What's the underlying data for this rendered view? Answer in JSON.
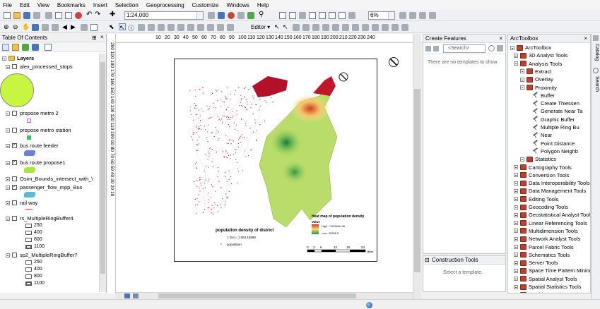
{
  "menu": [
    "File",
    "Edit",
    "View",
    "Bookmarks",
    "Insert",
    "Selection",
    "Geoprocessing",
    "Customize",
    "Windows",
    "Help"
  ],
  "toolbar": {
    "scale": "1:24,000",
    "zoom_percent": "6%",
    "editor_label": "Editor ▾"
  },
  "toc": {
    "title": "Table Of Contents",
    "root": "Layers",
    "layers": [
      {
        "name": "alex_processed_stops",
        "checked": false
      },
      {
        "name": "propose metro 2",
        "checked": false
      },
      {
        "name": "propose metro station",
        "checked": false
      },
      {
        "name": "bus route feeder",
        "checked": true
      },
      {
        "name": "bus route propose1",
        "checked": true
      },
      {
        "name": "Osim_Bounds_intersect_with_\\",
        "checked": false
      },
      {
        "name": "passenger_flow_mpp_Bus",
        "checked": true
      },
      {
        "name": "rail way",
        "checked": false
      },
      {
        "name": "rs_MultipleRingBuffer4",
        "checked": false
      },
      {
        "name": "sp2_MultipleRingBuffer7",
        "checked": false
      }
    ],
    "buffer1_labels": [
      "250",
      "400",
      "800",
      "1100"
    ],
    "buffer2_labels": [
      "250",
      "400",
      "800",
      "1100"
    ],
    "colors": {
      "stops_fill": "#c8f542",
      "metro2": "#e05be0",
      "station": "#3fbf6a",
      "feeder": "#6e7fd6",
      "propose1": "#a8e63c",
      "passenger": "#5fb8d6",
      "railway": "#d63a3a"
    }
  },
  "ruler_top": [
    "10",
    "20",
    "30",
    "40",
    "50",
    "60",
    "70",
    "80",
    "90",
    "100",
    "110",
    "120",
    "130",
    "140",
    "150",
    "160",
    "170",
    "180",
    "190",
    "200",
    "210",
    "220",
    "230",
    "240"
  ],
  "ruler_left": "200 190 180 170 160 150 140 130 120 110 100 90 80 70 60 50 40 30 20 10",
  "map": {
    "legend_density_title": "population density of district",
    "legend_density_item1": "1 Dot = 1.063.15890",
    "legend_density_item2": "population",
    "heat_title": "Heat map of population density",
    "heat_sub": "Value",
    "heat_high": "High : 7.64950e+06",
    "heat_low": "Low : 25956.3",
    "scale_ticks": [
      "0",
      "3",
      "6",
      "12",
      "18",
      "24"
    ],
    "scale_unit": "Miles"
  },
  "create_features": {
    "title": "Create Features",
    "search_placeholder": "<Search>",
    "empty_text": "There are no templates to show."
  },
  "construction_tools": {
    "title": "Construction Tools",
    "text": "Select a template."
  },
  "arctoolbox": {
    "title": "ArcToolbox",
    "items": [
      {
        "label": "ArcToolbox",
        "level": 0,
        "kind": "root"
      },
      {
        "label": "3D Analyst Tools",
        "level": 1,
        "kind": "toolbox"
      },
      {
        "label": "Analysis Tools",
        "level": 1,
        "kind": "toolbox"
      },
      {
        "label": "Extract",
        "level": 2,
        "kind": "toolbox"
      },
      {
        "label": "Overlay",
        "level": 2,
        "kind": "toolbox"
      },
      {
        "label": "Proximity",
        "level": 2,
        "kind": "toolbox"
      },
      {
        "label": "Buffer",
        "level": 3,
        "kind": "tool"
      },
      {
        "label": "Create Thiessen",
        "level": 3,
        "kind": "tool"
      },
      {
        "label": "Generate Near Ta",
        "level": 3,
        "kind": "tool"
      },
      {
        "label": "Graphic Buffer",
        "level": 3,
        "kind": "tool"
      },
      {
        "label": "Multiple Ring Bu",
        "level": 3,
        "kind": "tool"
      },
      {
        "label": "Near",
        "level": 3,
        "kind": "tool"
      },
      {
        "label": "Point Distance",
        "level": 3,
        "kind": "tool"
      },
      {
        "label": "Polygon Neighb",
        "level": 3,
        "kind": "tool"
      },
      {
        "label": "Statistics",
        "level": 2,
        "kind": "toolbox"
      },
      {
        "label": "Cartography Tools",
        "level": 1,
        "kind": "toolbox"
      },
      {
        "label": "Conversion Tools",
        "level": 1,
        "kind": "toolbox"
      },
      {
        "label": "Data Interoperability Tools",
        "level": 1,
        "kind": "toolbox"
      },
      {
        "label": "Data Management Tools",
        "level": 1,
        "kind": "toolbox"
      },
      {
        "label": "Editing Tools",
        "level": 1,
        "kind": "toolbox"
      },
      {
        "label": "Geocoding Tools",
        "level": 1,
        "kind": "toolbox"
      },
      {
        "label": "Geostatistical Analyst Tools",
        "level": 1,
        "kind": "toolbox"
      },
      {
        "label": "Linear Referencing Tools",
        "level": 1,
        "kind": "toolbox"
      },
      {
        "label": "Multidimension Tools",
        "level": 1,
        "kind": "toolbox"
      },
      {
        "label": "Network Analyst Tools",
        "level": 1,
        "kind": "toolbox"
      },
      {
        "label": "Parcel Fabric Tools",
        "level": 1,
        "kind": "toolbox"
      },
      {
        "label": "Schematics Tools",
        "level": 1,
        "kind": "toolbox"
      },
      {
        "label": "Server Tools",
        "level": 1,
        "kind": "toolbox"
      },
      {
        "label": "Space Time Pattern Mining",
        "level": 1,
        "kind": "toolbox"
      },
      {
        "label": "Spatial Analyst Tools",
        "level": 1,
        "kind": "toolbox"
      },
      {
        "label": "Spatial Statistics Tools",
        "level": 1,
        "kind": "toolbox"
      },
      {
        "label": "Tracking Analyst Tools",
        "level": 1,
        "kind": "toolbox"
      }
    ]
  },
  "side_tabs": [
    "Catalog",
    "Search"
  ]
}
